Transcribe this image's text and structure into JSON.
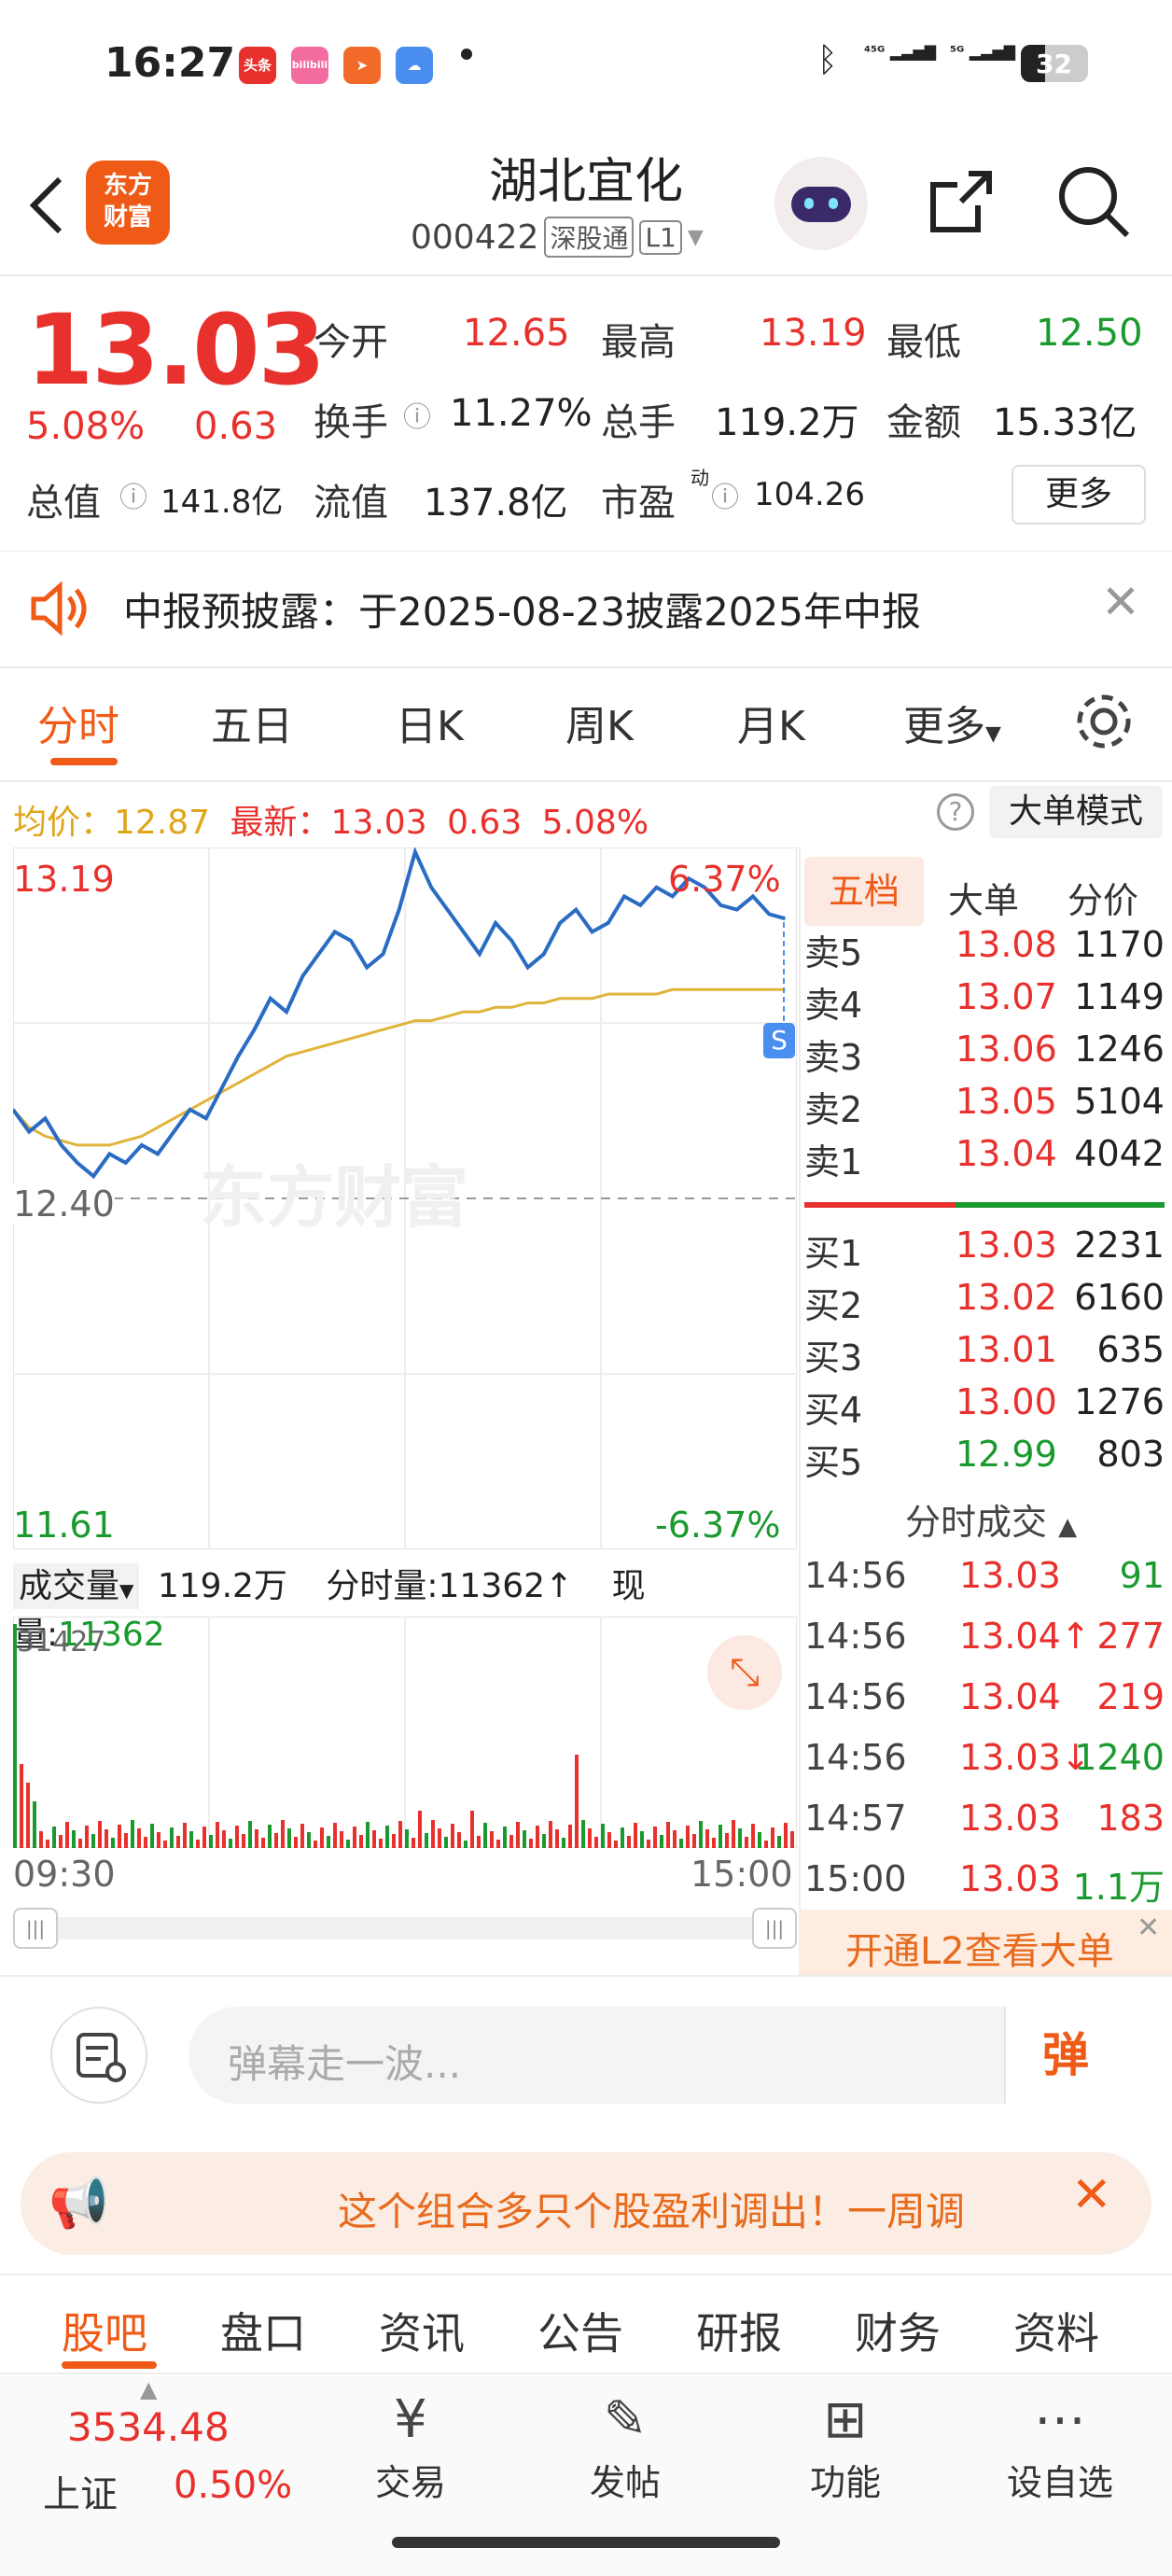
{
  "status_bar": {
    "time": "16:27",
    "apps": [
      "头条",
      "bilibili",
      "send-icon",
      "weather-icon"
    ],
    "battery": "32"
  },
  "header": {
    "stock_name": "湖北宜化",
    "stock_code": "000422",
    "tag_market": "深股通",
    "tag_level": "L1"
  },
  "quote": {
    "price": "13.03",
    "change_pct": "5.08%",
    "change": "0.63",
    "open_label": "今开",
    "open": "12.65",
    "high_label": "最高",
    "high": "13.19",
    "low_label": "最低",
    "low": "12.50",
    "turnover_label": "换手",
    "turnover": "11.27%",
    "volume_label": "总手",
    "volume": "119.2万",
    "amount_label": "金额",
    "amount": "15.33亿",
    "mktcap_label": "总值",
    "mktcap": "141.8亿",
    "float_label": "流值",
    "float": "137.8亿",
    "pe_label": "市盈",
    "pe_sup": "动",
    "pe": "104.26",
    "more_button": "更多"
  },
  "notice": {
    "text": "中报预披露：于2025-08-23披露2025年中报"
  },
  "tabs": [
    "分时",
    "五日",
    "日K",
    "周K",
    "月K",
    "更多"
  ],
  "chart_header": {
    "avg_label": "均价：",
    "avg": "12.87",
    "latest_label": "最新：",
    "latest": "13.03",
    "change": "0.63",
    "change_pct": "5.08%",
    "big_order_button": "大单模式"
  },
  "chart_data": {
    "type": "line",
    "price_axis": {
      "top": "13.19",
      "mid": "12.40",
      "bottom": "11.61",
      "top_pct": "6.37%",
      "bottom_pct": "-6.37%"
    },
    "x_labels": [
      "09:30",
      "15:00"
    ],
    "ylim": [
      11.61,
      13.19
    ],
    "series": [
      {
        "values": [
          12.6,
          12.55,
          12.58,
          12.52,
          12.48,
          12.45,
          12.5,
          12.48,
          12.52,
          12.5,
          12.55,
          12.6,
          12.58,
          12.65,
          12.72,
          12.78,
          12.85,
          12.82,
          12.9,
          12.95,
          13.0,
          12.98,
          12.92,
          12.95,
          13.05,
          13.18,
          13.1,
          13.05,
          13.0,
          12.95,
          13.02,
          12.98,
          12.92,
          12.95,
          13.02,
          13.05,
          13.0,
          13.02,
          13.08,
          13.06,
          13.1,
          13.08,
          13.12,
          13.1,
          13.06,
          13.05,
          13.08,
          13.04,
          13.03
        ]
      },
      {
        "values": [
          12.6,
          12.56,
          12.54,
          12.53,
          12.52,
          12.52,
          12.52,
          12.53,
          12.54,
          12.56,
          12.58,
          12.6,
          12.62,
          12.64,
          12.66,
          12.68,
          12.7,
          12.72,
          12.73,
          12.74,
          12.75,
          12.76,
          12.77,
          12.78,
          12.79,
          12.8,
          12.8,
          12.81,
          12.82,
          12.82,
          12.83,
          12.83,
          12.84,
          12.84,
          12.85,
          12.85,
          12.85,
          12.86,
          12.86,
          12.86,
          12.86,
          12.87,
          12.87,
          12.87,
          12.87,
          12.87,
          12.87,
          12.87,
          12.87
        ]
      }
    ],
    "volume_max": "31427",
    "volume_label": "成交量",
    "volume_total": "119.2万",
    "tick_volume_label": "分时量:",
    "tick_volume": "11362↑",
    "now_volume_label": "现量:",
    "now_volume": "11362"
  },
  "order_book": {
    "tabs": [
      "五档",
      "大单",
      "分价"
    ],
    "sells": [
      {
        "label": "卖5",
        "price": "13.08",
        "vol": "1170"
      },
      {
        "label": "卖4",
        "price": "13.07",
        "vol": "1149"
      },
      {
        "label": "卖3",
        "price": "13.06",
        "vol": "1246"
      },
      {
        "label": "卖2",
        "price": "13.05",
        "vol": "5104"
      },
      {
        "label": "卖1",
        "price": "13.04",
        "vol": "4042"
      }
    ],
    "buys": [
      {
        "label": "买1",
        "price": "13.03",
        "vol": "2231"
      },
      {
        "label": "买2",
        "price": "13.02",
        "vol": "6160"
      },
      {
        "label": "买3",
        "price": "13.01",
        "vol": "635"
      },
      {
        "label": "买4",
        "price": "13.00",
        "vol": "1276"
      },
      {
        "label": "买5",
        "price": "12.99",
        "vol": "803"
      }
    ],
    "trades_title": "分时成交",
    "trades": [
      {
        "time": "14:56",
        "price": "13.03",
        "vol": "91"
      },
      {
        "time": "14:56",
        "price": "13.04↑",
        "vol": "277"
      },
      {
        "time": "14:56",
        "price": "13.04",
        "vol": "219"
      },
      {
        "time": "14:56",
        "price": "13.03↓",
        "vol": "1240"
      },
      {
        "time": "14:57",
        "price": "13.03",
        "vol": "183"
      },
      {
        "time": "15:00",
        "price": "13.03",
        "vol": "1.1万"
      }
    ],
    "l2_banner": "开通L2查看大单"
  },
  "comment_bar": {
    "placeholder": "弹幕走一波...",
    "danmu_button": "弹"
  },
  "promo": {
    "text": "这个组合多只个股盈利调出！一周调"
  },
  "sub_tabs": [
    "股吧",
    "盘口",
    "资讯",
    "公告",
    "研报",
    "财务",
    "资料"
  ],
  "bottom_nav": {
    "index_value": "3534.48",
    "index_name": "上证",
    "index_pct": "0.50%",
    "items": [
      "交易",
      "发帖",
      "功能",
      "设自选"
    ]
  },
  "colors": {
    "up": "#e8302c",
    "down": "#1a9a2e",
    "accent": "#ef5a16",
    "line": "#2a6cc4",
    "avg": "#e0b43a"
  }
}
